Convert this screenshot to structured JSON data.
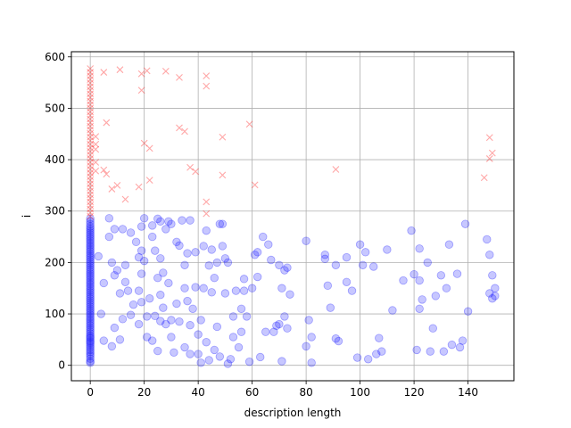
{
  "chart_data": {
    "type": "scatter",
    "title": "",
    "xlabel": "description length",
    "ylabel": "i",
    "xlim": [
      -7,
      157
    ],
    "ylim": [
      -30,
      610
    ],
    "xticks": [
      0,
      20,
      40,
      60,
      80,
      100,
      120,
      140
    ],
    "yticks": [
      0,
      100,
      200,
      300,
      400,
      500,
      600
    ],
    "grid": true,
    "series": [
      {
        "marker": "x",
        "color": "#ff0000",
        "alpha": 0.25,
        "points": [
          [
            5,
            570
          ],
          [
            11,
            575
          ],
          [
            19,
            535
          ],
          [
            19,
            567
          ],
          [
            21,
            573
          ],
          [
            28,
            572
          ],
          [
            33,
            560
          ],
          [
            43,
            563
          ],
          [
            43,
            543
          ],
          [
            6,
            472
          ],
          [
            33,
            462
          ],
          [
            35,
            455
          ],
          [
            20,
            432
          ],
          [
            22,
            422
          ],
          [
            49,
            444
          ],
          [
            59,
            469
          ],
          [
            5,
            380
          ],
          [
            6,
            372
          ],
          [
            8,
            343
          ],
          [
            10,
            350
          ],
          [
            13,
            323
          ],
          [
            18,
            347
          ],
          [
            22,
            360
          ],
          [
            37,
            385
          ],
          [
            39,
            377
          ],
          [
            49,
            370
          ],
          [
            61,
            351
          ],
          [
            91,
            381
          ],
          [
            43,
            318
          ],
          [
            43,
            295
          ],
          [
            146,
            365
          ],
          [
            148,
            443
          ],
          [
            148,
            402
          ],
          [
            149,
            413
          ]
        ]
      },
      {
        "marker": "o",
        "color": "#0000ff",
        "alpha": 0.22,
        "points": [
          [
            3,
            212
          ],
          [
            5,
            160
          ],
          [
            4,
            100
          ],
          [
            5,
            48
          ],
          [
            7,
            286
          ],
          [
            7,
            250
          ],
          [
            8,
            200
          ],
          [
            9,
            265
          ],
          [
            9,
            175
          ],
          [
            9,
            73
          ],
          [
            8,
            37
          ],
          [
            10,
            185
          ],
          [
            11,
            140
          ],
          [
            11,
            50
          ],
          [
            12,
            265
          ],
          [
            12,
            90
          ],
          [
            13,
            195
          ],
          [
            13,
            162
          ],
          [
            14,
            145
          ],
          [
            15,
            98
          ],
          [
            15,
            258
          ],
          [
            16,
            118
          ],
          [
            17,
            240
          ],
          [
            18,
            210
          ],
          [
            18,
            145
          ],
          [
            18,
            80
          ],
          [
            19,
            270
          ],
          [
            19,
            223
          ],
          [
            19,
            178
          ],
          [
            19,
            123
          ],
          [
            20,
            286
          ],
          [
            20,
            203
          ],
          [
            21,
            95
          ],
          [
            21,
            55
          ],
          [
            22,
            130
          ],
          [
            23,
            272
          ],
          [
            23,
            250
          ],
          [
            23,
            48
          ],
          [
            24,
            223
          ],
          [
            24,
            96
          ],
          [
            25,
            285
          ],
          [
            25,
            170
          ],
          [
            25,
            28
          ],
          [
            26,
            280
          ],
          [
            26,
            208
          ],
          [
            26,
            137
          ],
          [
            26,
            86
          ],
          [
            27,
            180
          ],
          [
            27,
            112
          ],
          [
            28,
            265
          ],
          [
            28,
            80
          ],
          [
            29,
            280
          ],
          [
            29,
            160
          ],
          [
            30,
            275
          ],
          [
            30,
            88
          ],
          [
            30,
            55
          ],
          [
            31,
            25
          ],
          [
            32,
            240
          ],
          [
            32,
            120
          ],
          [
            33,
            233
          ],
          [
            33,
            85
          ],
          [
            34,
            282
          ],
          [
            35,
            195
          ],
          [
            35,
            150
          ],
          [
            35,
            35
          ],
          [
            36,
            218
          ],
          [
            36,
            125
          ],
          [
            37,
            282
          ],
          [
            37,
            78
          ],
          [
            37,
            22
          ],
          [
            38,
            110
          ],
          [
            39,
            220
          ],
          [
            39,
            152
          ],
          [
            40,
            60
          ],
          [
            40,
            22
          ],
          [
            41,
            88
          ],
          [
            41,
            5
          ],
          [
            42,
            232
          ],
          [
            42,
            150
          ],
          [
            43,
            262
          ],
          [
            43,
            45
          ],
          [
            44,
            194
          ],
          [
            44,
            10
          ],
          [
            45,
            225
          ],
          [
            45,
            142
          ],
          [
            46,
            170
          ],
          [
            46,
            30
          ],
          [
            47,
            200
          ],
          [
            47,
            75
          ],
          [
            48,
            275
          ],
          [
            48,
            17
          ],
          [
            49,
            275
          ],
          [
            49,
            232
          ],
          [
            50,
            208
          ],
          [
            50,
            140
          ],
          [
            51,
            200
          ],
          [
            51,
            3
          ],
          [
            52,
            12
          ],
          [
            53,
            95
          ],
          [
            53,
            55
          ],
          [
            54,
            145
          ],
          [
            55,
            35
          ],
          [
            56,
            110
          ],
          [
            56,
            65
          ],
          [
            57,
            168
          ],
          [
            57,
            145
          ],
          [
            58,
            95
          ],
          [
            59,
            7
          ],
          [
            60,
            150
          ],
          [
            61,
            215
          ],
          [
            62,
            220
          ],
          [
            62,
            172
          ],
          [
            63,
            16
          ],
          [
            64,
            250
          ],
          [
            65,
            65
          ],
          [
            66,
            235
          ],
          [
            67,
            205
          ],
          [
            68,
            65
          ],
          [
            69,
            77
          ],
          [
            70,
            195
          ],
          [
            70,
            80
          ],
          [
            71,
            150
          ],
          [
            71,
            8
          ],
          [
            72,
            185
          ],
          [
            72,
            95
          ],
          [
            73,
            190
          ],
          [
            73,
            72
          ],
          [
            74,
            138
          ],
          [
            80,
            242
          ],
          [
            80,
            37
          ],
          [
            81,
            88
          ],
          [
            82,
            5
          ],
          [
            82,
            55
          ],
          [
            87,
            207
          ],
          [
            87,
            215
          ],
          [
            88,
            155
          ],
          [
            89,
            112
          ],
          [
            91,
            195
          ],
          [
            91,
            52
          ],
          [
            92,
            47
          ],
          [
            95,
            210
          ],
          [
            95,
            162
          ],
          [
            97,
            145
          ],
          [
            99,
            15
          ],
          [
            100,
            235
          ],
          [
            101,
            195
          ],
          [
            102,
            220
          ],
          [
            103,
            12
          ],
          [
            105,
            192
          ],
          [
            106,
            22
          ],
          [
            107,
            53
          ],
          [
            108,
            27
          ],
          [
            110,
            225
          ],
          [
            112,
            107
          ],
          [
            116,
            165
          ],
          [
            119,
            262
          ],
          [
            120,
            177
          ],
          [
            121,
            30
          ],
          [
            122,
            227
          ],
          [
            122,
            165
          ],
          [
            122,
            110
          ],
          [
            123,
            128
          ],
          [
            125,
            200
          ],
          [
            126,
            27
          ],
          [
            127,
            72
          ],
          [
            128,
            135
          ],
          [
            130,
            175
          ],
          [
            131,
            27
          ],
          [
            132,
            150
          ],
          [
            133,
            235
          ],
          [
            134,
            40
          ],
          [
            136,
            178
          ],
          [
            137,
            35
          ],
          [
            138,
            48
          ],
          [
            139,
            275
          ],
          [
            140,
            105
          ],
          [
            147,
            245
          ],
          [
            148,
            215
          ],
          [
            148,
            140
          ],
          [
            149,
            175
          ],
          [
            149,
            130
          ],
          [
            150,
            135
          ],
          [
            150,
            150
          ]
        ],
        "zero_points": [
          5,
          8,
          13,
          18,
          22,
          26,
          30,
          34,
          38,
          42,
          45,
          48,
          52,
          55,
          58,
          62,
          66,
          70,
          74,
          78,
          82,
          86,
          90,
          94,
          98,
          102,
          106,
          110,
          114,
          118,
          122,
          126,
          130,
          134,
          138,
          142,
          146,
          150,
          154,
          158,
          162,
          166,
          170,
          174,
          178,
          182,
          186,
          190,
          194,
          198,
          202,
          206,
          210,
          214,
          218,
          222,
          226,
          230,
          234,
          238,
          242,
          246,
          250,
          254,
          258,
          262,
          266,
          270,
          275,
          280,
          285
        ]
      },
      {
        "marker": "x",
        "color": "#ff0000",
        "alpha": 0.25,
        "zero_points": [
          290,
          297,
          304,
          311,
          318,
          325,
          332,
          339,
          346,
          353,
          360,
          367,
          374,
          381,
          388,
          395,
          402,
          409,
          416,
          423,
          430,
          437,
          444,
          451,
          458,
          465,
          472,
          479,
          486,
          493,
          500,
          507,
          514,
          521,
          528,
          535,
          542,
          549,
          556,
          563,
          570,
          577
        ]
      },
      {
        "marker": "x",
        "color": "#ff0000",
        "alpha": 0.25,
        "points": [
          [
            2,
            445
          ],
          [
            2,
            430
          ],
          [
            2,
            420
          ],
          [
            2,
            395
          ],
          [
            2,
            378
          ]
        ]
      }
    ]
  }
}
